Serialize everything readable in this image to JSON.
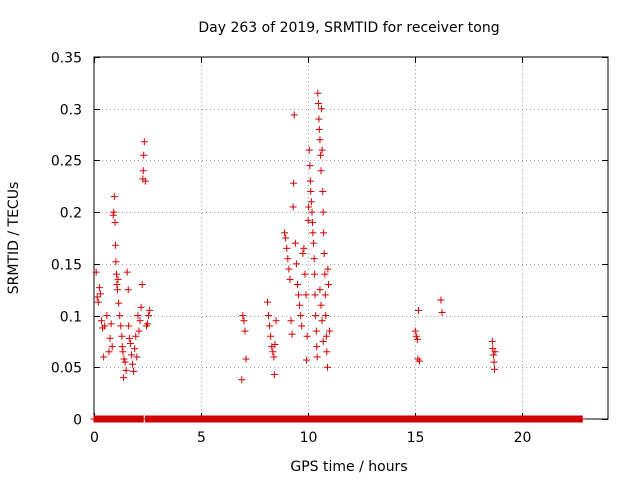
{
  "chart_data": {
    "type": "scatter",
    "title": "Day 263 of 2019, SRMTID for receiver tong",
    "xlabel": "GPS time / hours",
    "ylabel": "SRMTID / TECUs",
    "xlim": [
      0,
      24
    ],
    "ylim": [
      0,
      0.35
    ],
    "xticks": [
      0,
      5,
      10,
      15,
      20
    ],
    "xtick_labels": [
      "0",
      "5",
      "10",
      "15",
      "20"
    ],
    "yticks": [
      0,
      0.05,
      0.1,
      0.15,
      0.2,
      0.25,
      0.3,
      0.35
    ],
    "ytick_labels": [
      "0",
      "0.05",
      "0.1",
      "0.15",
      "0.2",
      "0.25",
      "0.3",
      "0.35"
    ],
    "grid": true,
    "marker": "+",
    "color": "#d00000",
    "series": [
      {
        "name": "SRMTID",
        "points": [
          [
            0.1,
            0.142
          ],
          [
            0.15,
            0.118
          ],
          [
            0.2,
            0.113
          ],
          [
            0.25,
            0.127
          ],
          [
            0.3,
            0.121
          ],
          [
            0.35,
            0.095
          ],
          [
            0.4,
            0.088
          ],
          [
            0.45,
            0.06
          ],
          [
            0.5,
            0.09
          ],
          [
            0.6,
            0.1
          ],
          [
            0.7,
            0.065
          ],
          [
            0.75,
            0.078
          ],
          [
            0.8,
            0.092
          ],
          [
            0.85,
            0.07
          ],
          [
            0.9,
            0.197
          ],
          [
            0.92,
            0.2
          ],
          [
            0.95,
            0.215
          ],
          [
            0.98,
            0.19
          ],
          [
            1.0,
            0.168
          ],
          [
            1.02,
            0.152
          ],
          [
            1.05,
            0.14
          ],
          [
            1.07,
            0.13
          ],
          [
            1.1,
            0.125
          ],
          [
            1.12,
            0.135
          ],
          [
            1.15,
            0.112
          ],
          [
            1.2,
            0.1
          ],
          [
            1.25,
            0.09
          ],
          [
            1.3,
            0.08
          ],
          [
            1.32,
            0.07
          ],
          [
            1.35,
            0.065
          ],
          [
            1.38,
            0.04
          ],
          [
            1.4,
            0.058
          ],
          [
            1.45,
            0.055
          ],
          [
            1.5,
            0.047
          ],
          [
            1.55,
            0.142
          ],
          [
            1.6,
            0.125
          ],
          [
            1.62,
            0.09
          ],
          [
            1.65,
            0.078
          ],
          [
            1.7,
            0.073
          ],
          [
            1.75,
            0.062
          ],
          [
            1.8,
            0.053
          ],
          [
            1.85,
            0.046
          ],
          [
            1.9,
            0.068
          ],
          [
            1.95,
            0.08
          ],
          [
            2.0,
            0.06
          ],
          [
            2.05,
            0.1
          ],
          [
            2.1,
            0.085
          ],
          [
            2.15,
            0.095
          ],
          [
            2.2,
            0.108
          ],
          [
            2.25,
            0.13
          ],
          [
            2.28,
            0.232
          ],
          [
            2.3,
            0.24
          ],
          [
            2.32,
            0.255
          ],
          [
            2.35,
            0.268
          ],
          [
            2.4,
            0.23
          ],
          [
            2.45,
            0.09
          ],
          [
            2.5,
            0.092
          ],
          [
            2.55,
            0.1
          ],
          [
            2.6,
            0.105
          ],
          [
            6.9,
            0.038
          ],
          [
            6.95,
            0.1
          ],
          [
            7.0,
            0.095
          ],
          [
            7.05,
            0.085
          ],
          [
            7.1,
            0.058
          ],
          [
            8.1,
            0.113
          ],
          [
            8.15,
            0.1
          ],
          [
            8.2,
            0.09
          ],
          [
            8.25,
            0.08
          ],
          [
            8.3,
            0.07
          ],
          [
            8.35,
            0.065
          ],
          [
            8.4,
            0.06
          ],
          [
            8.42,
            0.043
          ],
          [
            8.45,
            0.072
          ],
          [
            8.5,
            0.095
          ],
          [
            8.9,
            0.18
          ],
          [
            8.95,
            0.175
          ],
          [
            9.0,
            0.165
          ],
          [
            9.05,
            0.155
          ],
          [
            9.1,
            0.145
          ],
          [
            9.15,
            0.135
          ],
          [
            9.2,
            0.095
          ],
          [
            9.25,
            0.082
          ],
          [
            9.3,
            0.205
          ],
          [
            9.32,
            0.228
          ],
          [
            9.35,
            0.294
          ],
          [
            9.4,
            0.17
          ],
          [
            9.45,
            0.15
          ],
          [
            9.5,
            0.13
          ],
          [
            9.55,
            0.12
          ],
          [
            9.6,
            0.11
          ],
          [
            9.65,
            0.1
          ],
          [
            9.7,
            0.09
          ],
          [
            9.75,
            0.16
          ],
          [
            9.8,
            0.165
          ],
          [
            9.85,
            0.14
          ],
          [
            9.9,
            0.12
          ],
          [
            9.92,
            0.057
          ],
          [
            9.95,
            0.08
          ],
          [
            10.0,
            0.192
          ],
          [
            10.02,
            0.205
          ],
          [
            10.05,
            0.26
          ],
          [
            10.08,
            0.245
          ],
          [
            10.1,
            0.23
          ],
          [
            10.12,
            0.22
          ],
          [
            10.15,
            0.21
          ],
          [
            10.18,
            0.2
          ],
          [
            10.2,
            0.19
          ],
          [
            10.22,
            0.18
          ],
          [
            10.25,
            0.17
          ],
          [
            10.28,
            0.155
          ],
          [
            10.3,
            0.14
          ],
          [
            10.32,
            0.12
          ],
          [
            10.35,
            0.1
          ],
          [
            10.38,
            0.085
          ],
          [
            10.4,
            0.07
          ],
          [
            10.42,
            0.06
          ],
          [
            10.45,
            0.315
          ],
          [
            10.48,
            0.305
          ],
          [
            10.5,
            0.29
          ],
          [
            10.52,
            0.28
          ],
          [
            10.55,
            0.27
          ],
          [
            10.58,
            0.255
          ],
          [
            10.6,
            0.24
          ],
          [
            10.62,
            0.3
          ],
          [
            10.65,
            0.26
          ],
          [
            10.68,
            0.22
          ],
          [
            10.7,
            0.2
          ],
          [
            10.72,
            0.18
          ],
          [
            10.75,
            0.16
          ],
          [
            10.78,
            0.14
          ],
          [
            10.8,
            0.12
          ],
          [
            10.82,
            0.1
          ],
          [
            10.85,
            0.08
          ],
          [
            10.87,
            0.065
          ],
          [
            10.9,
            0.05
          ],
          [
            10.92,
            0.145
          ],
          [
            10.95,
            0.13
          ],
          [
            11.0,
            0.085
          ],
          [
            10.55,
            0.125
          ],
          [
            10.6,
            0.11
          ],
          [
            10.65,
            0.095
          ],
          [
            10.7,
            0.075
          ],
          [
            15.0,
            0.085
          ],
          [
            15.05,
            0.08
          ],
          [
            15.1,
            0.077
          ],
          [
            15.12,
            0.058
          ],
          [
            15.15,
            0.105
          ],
          [
            15.2,
            0.056
          ],
          [
            16.2,
            0.115
          ],
          [
            16.25,
            0.103
          ],
          [
            18.6,
            0.075
          ],
          [
            18.62,
            0.068
          ],
          [
            18.65,
            0.062
          ],
          [
            18.68,
            0.055
          ],
          [
            18.7,
            0.048
          ],
          [
            18.72,
            0.065
          ]
        ]
      }
    ],
    "zero_band": {
      "y": 0,
      "ranges": [
        [
          0.0,
          2.3
        ],
        [
          2.4,
          22.8
        ]
      ]
    }
  }
}
